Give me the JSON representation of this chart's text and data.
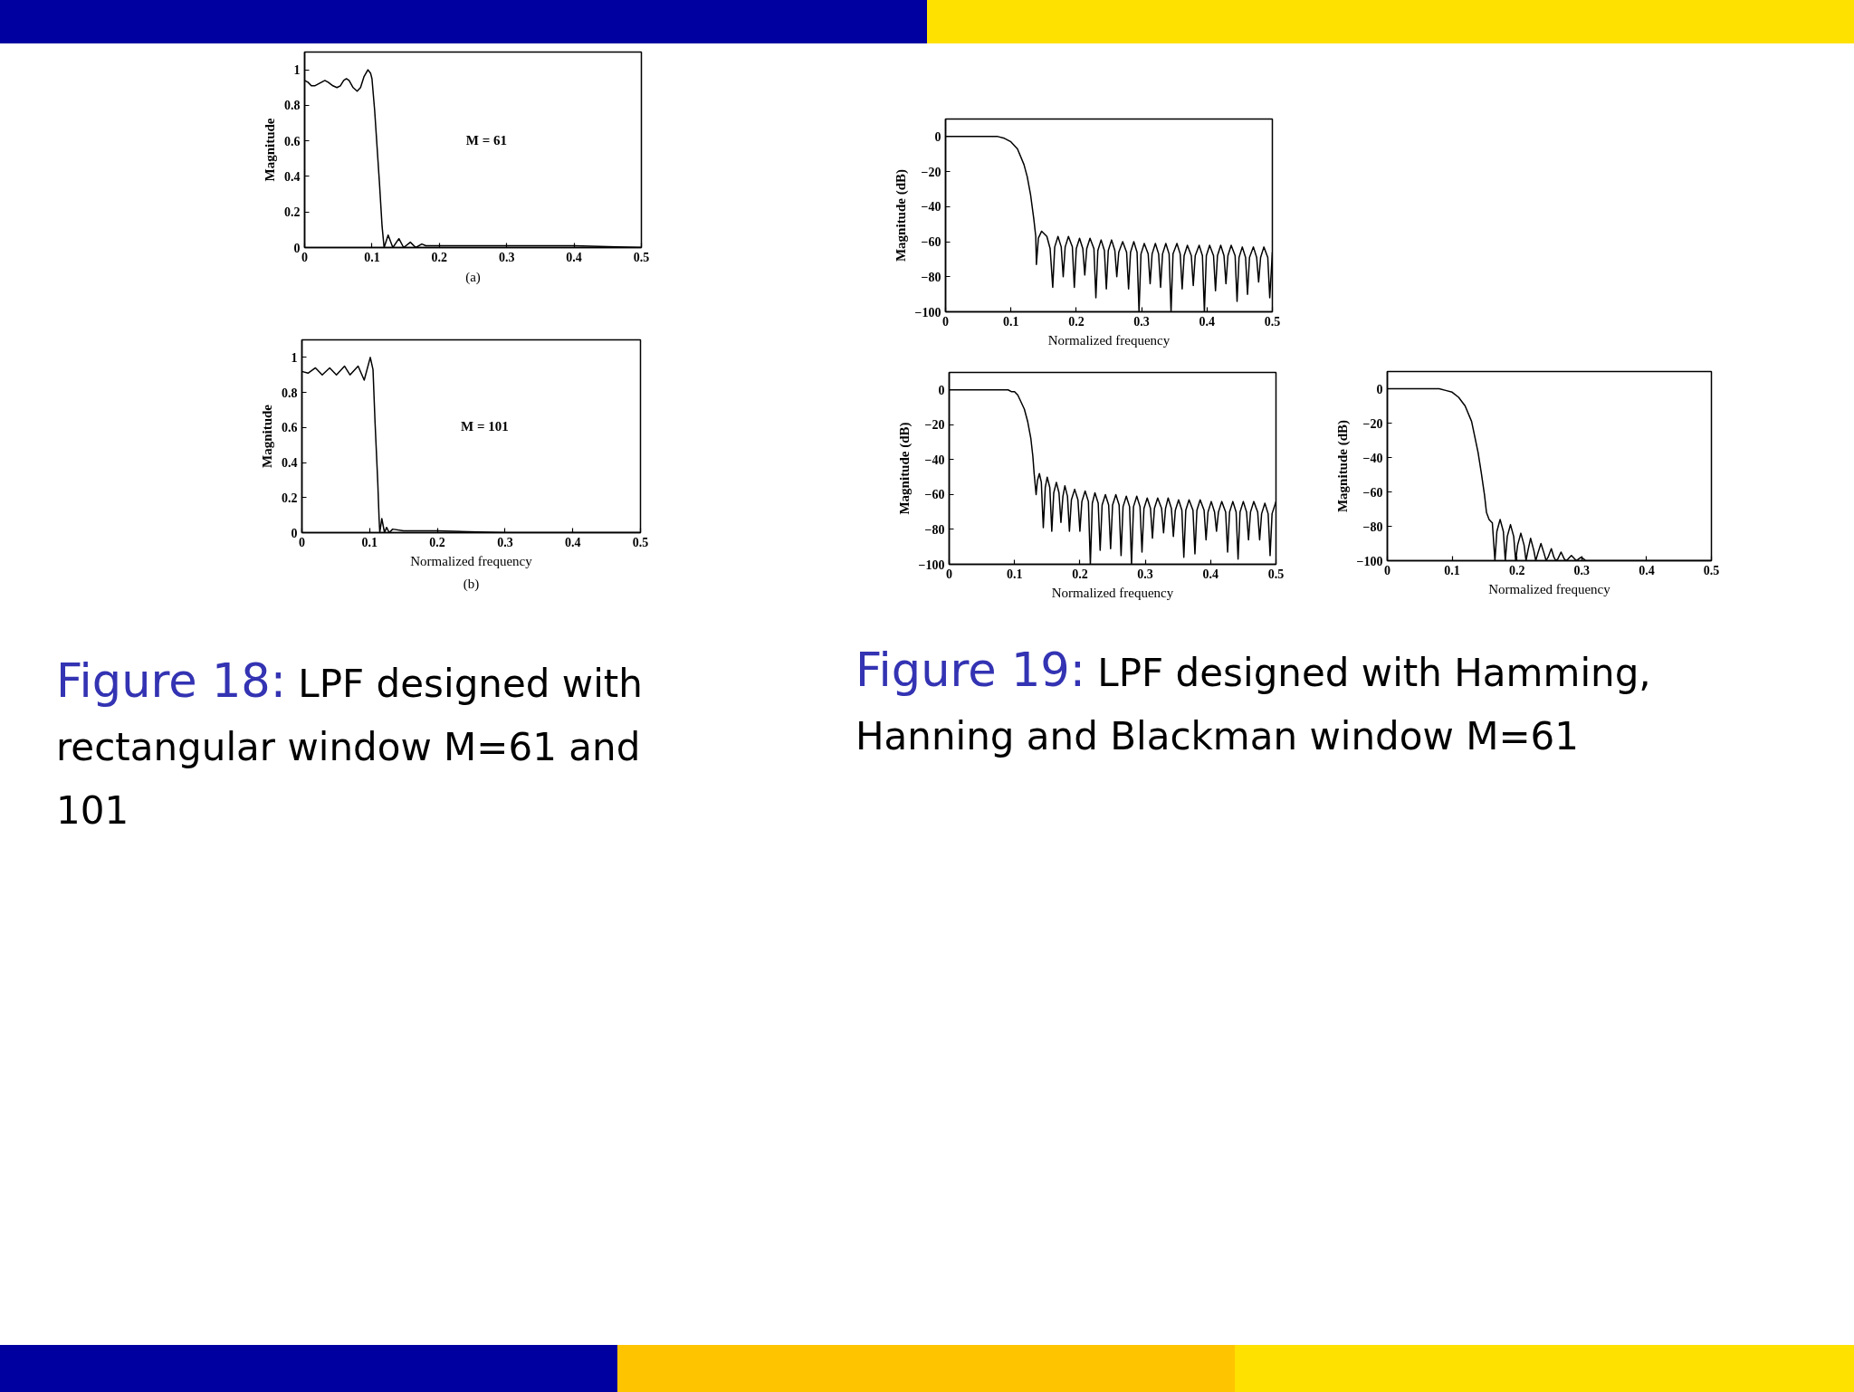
{
  "chart_data": [
    {
      "type": "line",
      "ylabel": "Magnitude",
      "annotations": [
        "M = 61",
        "(a)"
      ],
      "xlim": [
        0,
        0.5
      ],
      "ylim": [
        0,
        1.1
      ],
      "xticks": [
        0,
        0.1,
        0.2,
        0.3,
        0.4,
        0.5
      ],
      "yticks": [
        0,
        0.2,
        0.4,
        0.6,
        0.8,
        1
      ],
      "grid": false,
      "color": "#000000",
      "x": [
        0,
        0.005,
        0.01,
        0.015,
        0.02,
        0.025,
        0.03,
        0.035,
        0.042,
        0.048,
        0.053,
        0.058,
        0.062,
        0.066,
        0.072,
        0.078,
        0.083,
        0.088,
        0.094,
        0.098,
        0.1,
        0.104,
        0.111,
        0.115,
        0.118,
        0.124,
        0.131,
        0.14,
        0.147,
        0.157,
        0.165,
        0.174,
        0.18,
        0.2,
        0.3,
        0.4,
        0.5
      ],
      "values": [
        0.94,
        0.93,
        0.91,
        0.91,
        0.92,
        0.93,
        0.94,
        0.93,
        0.91,
        0.9,
        0.91,
        0.94,
        0.95,
        0.94,
        0.9,
        0.88,
        0.9,
        0.96,
        1.0,
        0.98,
        0.95,
        0.77,
        0.37,
        0.12,
        0,
        0.07,
        0,
        0.05,
        0,
        0.03,
        0,
        0.02,
        0.01,
        0.01,
        0.01,
        0.01,
        0
      ]
    },
    {
      "type": "line",
      "xlabel": "Normalized frequency",
      "ylabel": "Magnitude",
      "annotations": [
        "M = 101",
        "(b)"
      ],
      "xlim": [
        0,
        0.5
      ],
      "ylim": [
        0,
        1.1
      ],
      "xticks": [
        0,
        0.1,
        0.2,
        0.3,
        0.4,
        0.5
      ],
      "yticks": [
        0,
        0.2,
        0.4,
        0.6,
        0.8,
        1
      ],
      "grid": false,
      "color": "#000000",
      "x": [
        0,
        0.009,
        0.02,
        0.03,
        0.041,
        0.051,
        0.063,
        0.071,
        0.083,
        0.092,
        0.101,
        0.105,
        0.108,
        0.112,
        0.114,
        0.115,
        0.118,
        0.122,
        0.125,
        0.129,
        0.134,
        0.15,
        0.2,
        0.3,
        0.4,
        0.5
      ],
      "values": [
        0.92,
        0.91,
        0.94,
        0.9,
        0.94,
        0.9,
        0.95,
        0.9,
        0.95,
        0.87,
        1.0,
        0.93,
        0.63,
        0.29,
        0.08,
        0,
        0.08,
        0,
        0.03,
        0,
        0.02,
        0.01,
        0.01,
        0,
        0,
        0
      ]
    },
    {
      "type": "other",
      "annotations": [
        "Figure 18: LPF designed with rectangular window M=61 and 101"
      ]
    },
    {
      "type": "line",
      "xlabel": "Normalized frequency",
      "ylabel": "Magnitude (dB)",
      "xlim": [
        0,
        0.5
      ],
      "ylim": [
        -100,
        10
      ],
      "xticks": [
        0,
        0.1,
        0.2,
        0.3,
        0.4,
        0.5
      ],
      "yticks": [
        -100,
        -80,
        -60,
        -40,
        -20,
        0
      ],
      "grid": false,
      "color": "#000000",
      "x": [
        0,
        0.05,
        0.08,
        0.09,
        0.1,
        0.11,
        0.12,
        0.125,
        0.13,
        0.135,
        0.138,
        0.139,
        0.142,
        0.147,
        0.155,
        0.16,
        0.164,
        0.167,
        0.172,
        0.177,
        0.18,
        0.183,
        0.188,
        0.194,
        0.197,
        0.2,
        0.205,
        0.21,
        0.213,
        0.216,
        0.221,
        0.227,
        0.23,
        0.233,
        0.238,
        0.243,
        0.246,
        0.249,
        0.254,
        0.259,
        0.262,
        0.265,
        0.271,
        0.277,
        0.28,
        0.283,
        0.288,
        0.293,
        0.296,
        0.299,
        0.304,
        0.31,
        0.313,
        0.316,
        0.321,
        0.326,
        0.329,
        0.332,
        0.337,
        0.342,
        0.345,
        0.348,
        0.354,
        0.359,
        0.362,
        0.365,
        0.37,
        0.376,
        0.379,
        0.382,
        0.388,
        0.393,
        0.396,
        0.399,
        0.404,
        0.41,
        0.413,
        0.416,
        0.421,
        0.426,
        0.429,
        0.432,
        0.437,
        0.443,
        0.446,
        0.449,
        0.454,
        0.459,
        0.462,
        0.465,
        0.471,
        0.476,
        0.479,
        0.482,
        0.487,
        0.493,
        0.496,
        0.5
      ],
      "values": [
        0,
        0,
        0,
        -1,
        -3,
        -7,
        -16,
        -23,
        -33,
        -47,
        -57,
        -73,
        -58,
        -54,
        -57,
        -64,
        -86,
        -63,
        -57,
        -63,
        -80,
        -63,
        -57,
        -63,
        -86,
        -64,
        -58,
        -64,
        -79,
        -64,
        -58,
        -64,
        -92,
        -65,
        -59,
        -65,
        -87,
        -65,
        -59,
        -65,
        -80,
        -66,
        -60,
        -66,
        -87,
        -66,
        -60,
        -66,
        -100,
        -67,
        -61,
        -67,
        -84,
        -67,
        -61,
        -67,
        -86,
        -67,
        -61,
        -67,
        -100,
        -67,
        -61,
        -67,
        -87,
        -68,
        -62,
        -68,
        -85,
        -68,
        -62,
        -68,
        -100,
        -68,
        -62,
        -68,
        -88,
        -68,
        -62,
        -68,
        -84,
        -68,
        -62,
        -68,
        -94,
        -69,
        -63,
        -69,
        -90,
        -69,
        -63,
        -69,
        -83,
        -69,
        -63,
        -69,
        -92,
        -66
      ]
    },
    {
      "type": "line",
      "xlabel": "Normalized frequency",
      "ylabel": "Magnitude (dB)",
      "xlim": [
        0,
        0.5
      ],
      "ylim": [
        -100,
        10
      ],
      "xticks": [
        0,
        0.1,
        0.2,
        0.3,
        0.4,
        0.5
      ],
      "yticks": [
        -100,
        -80,
        -60,
        -40,
        -20,
        0
      ],
      "grid": false,
      "color": "#000000",
      "x": [
        0,
        0.05,
        0.09,
        0.095,
        0.1,
        0.105,
        0.11,
        0.115,
        0.12,
        0.125,
        0.128,
        0.13,
        0.133,
        0.135,
        0.138,
        0.141,
        0.144,
        0.147,
        0.15,
        0.154,
        0.157,
        0.16,
        0.164,
        0.168,
        0.171,
        0.174,
        0.177,
        0.181,
        0.184,
        0.187,
        0.192,
        0.197,
        0.2,
        0.203,
        0.208,
        0.213,
        0.216,
        0.219,
        0.223,
        0.228,
        0.231,
        0.234,
        0.239,
        0.244,
        0.247,
        0.25,
        0.255,
        0.26,
        0.263,
        0.266,
        0.271,
        0.276,
        0.279,
        0.282,
        0.287,
        0.292,
        0.295,
        0.298,
        0.303,
        0.308,
        0.311,
        0.314,
        0.319,
        0.325,
        0.328,
        0.331,
        0.335,
        0.34,
        0.343,
        0.346,
        0.351,
        0.356,
        0.359,
        0.362,
        0.367,
        0.373,
        0.376,
        0.379,
        0.384,
        0.39,
        0.393,
        0.396,
        0.401,
        0.406,
        0.409,
        0.412,
        0.417,
        0.423,
        0.426,
        0.429,
        0.434,
        0.439,
        0.442,
        0.445,
        0.45,
        0.455,
        0.458,
        0.461,
        0.466,
        0.472,
        0.475,
        0.478,
        0.483,
        0.488,
        0.491,
        0.494,
        0.5
      ],
      "values": [
        0,
        0,
        0,
        -1,
        -1,
        -3,
        -7,
        -11,
        -18,
        -28,
        -38,
        -48,
        -60,
        -52,
        -48,
        -53,
        -79,
        -56,
        -50,
        -56,
        -81,
        -59,
        -53,
        -59,
        -76,
        -61,
        -55,
        -61,
        -81,
        -63,
        -57,
        -63,
        -81,
        -64,
        -58,
        -64,
        -100,
        -65,
        -59,
        -65,
        -92,
        -66,
        -60,
        -66,
        -91,
        -66,
        -60,
        -66,
        -95,
        -67,
        -61,
        -67,
        -100,
        -67,
        -61,
        -67,
        -93,
        -68,
        -62,
        -68,
        -85,
        -68,
        -62,
        -68,
        -82,
        -68,
        -62,
        -68,
        -84,
        -69,
        -63,
        -69,
        -96,
        -69,
        -63,
        -69,
        -94,
        -69,
        -63,
        -69,
        -86,
        -70,
        -64,
        -70,
        -81,
        -70,
        -64,
        -70,
        -93,
        -70,
        -64,
        -70,
        -97,
        -70,
        -64,
        -70,
        -86,
        -70,
        -64,
        -70,
        -86,
        -71,
        -65,
        -71,
        -95,
        -71,
        -64
      ]
    },
    {
      "type": "line",
      "xlabel": "Normalized frequency",
      "ylabel": "Magnitude (dB)",
      "xlim": [
        0,
        0.5
      ],
      "ylim": [
        -100,
        10
      ],
      "xticks": [
        0,
        0.1,
        0.2,
        0.3,
        0.4,
        0.5
      ],
      "yticks": [
        -100,
        -80,
        -60,
        -40,
        -20,
        0
      ],
      "grid": false,
      "color": "#000000",
      "x": [
        0,
        0.05,
        0.08,
        0.09,
        0.1,
        0.11,
        0.12,
        0.13,
        0.14,
        0.145,
        0.15,
        0.153,
        0.157,
        0.162,
        0.166,
        0.169,
        0.174,
        0.179,
        0.182,
        0.185,
        0.19,
        0.195,
        0.198,
        0.201,
        0.206,
        0.211,
        0.214,
        0.217,
        0.221,
        0.226,
        0.229,
        0.232,
        0.237,
        0.242,
        0.245,
        0.248,
        0.253,
        0.257,
        0.26,
        0.263,
        0.268,
        0.273,
        0.276,
        0.279,
        0.284,
        0.289,
        0.292,
        0.295,
        0.299,
        0.303,
        0.306,
        0.5
      ],
      "values": [
        0,
        0,
        0,
        -1,
        -2,
        -5,
        -10,
        -19,
        -37,
        -49,
        -62,
        -72,
        -76,
        -78,
        -100,
        -83,
        -76,
        -83,
        -100,
        -86,
        -79,
        -86,
        -100,
        -91,
        -84,
        -91,
        -100,
        -94,
        -87,
        -94,
        -100,
        -96,
        -90,
        -96,
        -100,
        -98,
        -93,
        -98,
        -100,
        -99,
        -95,
        -99,
        -100,
        -99,
        -97,
        -99,
        -100,
        -99,
        -98,
        -99,
        -100,
        -100
      ]
    },
    {
      "type": "other",
      "annotations": [
        "Figure 19: LPF designed with Hamming, Hanning and Blackman window M=61"
      ]
    }
  ]
}
